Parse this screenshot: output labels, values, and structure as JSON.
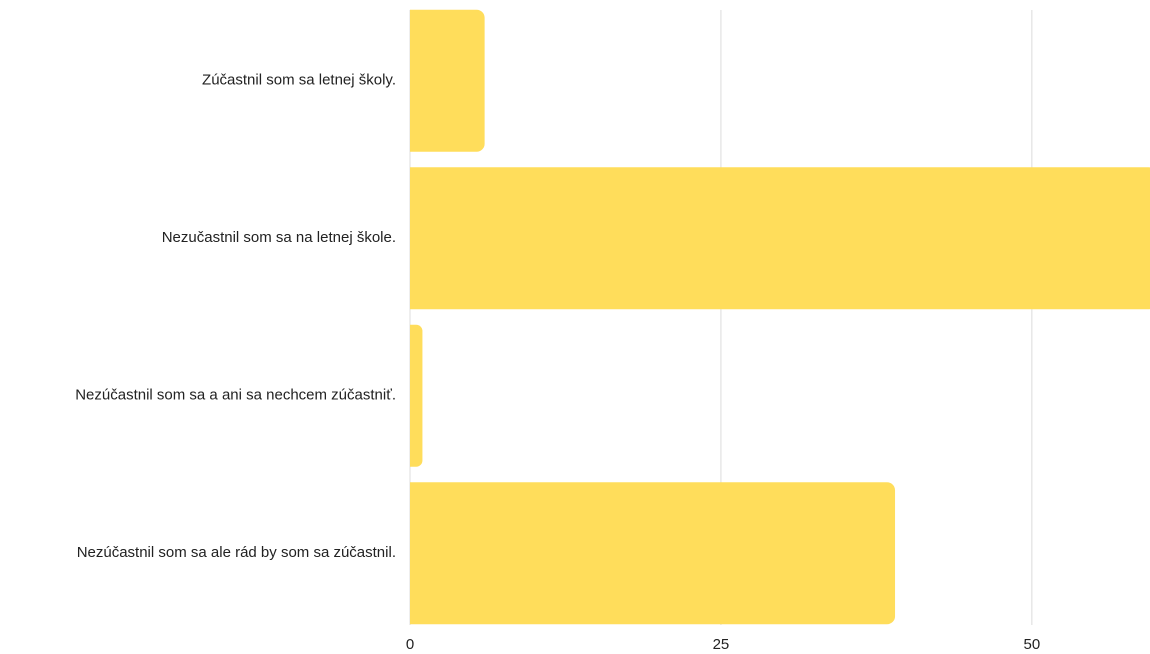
{
  "chart_data": {
    "type": "hbar",
    "categories": [
      "Zúčastnil som sa letnej školy.",
      "Nezučastnil som sa na letnej škole.",
      "Nezúčastnil som sa a ani sa nechcem zúčastniť.",
      "Nezúčastnil som sa ale rád by som sa zúčastnil."
    ],
    "values": [
      6,
      60,
      1,
      39
    ],
    "color": "#ffdd5b",
    "xlim": [
      0,
      59.5
    ],
    "xticks": [
      0,
      25,
      50
    ],
    "grid": true
  }
}
